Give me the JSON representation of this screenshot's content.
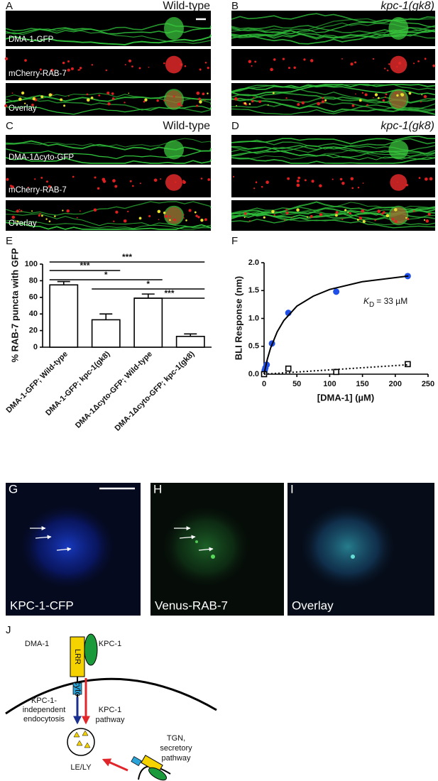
{
  "panels": [
    {
      "letter": "A",
      "title": "Wild-type",
      "channels": [
        "DMA-1-GFP",
        "mCherry-RAB-7",
        "Overlay"
      ]
    },
    {
      "letter": "B",
      "title": "kpc-1(gk8)"
    },
    {
      "letter": "C",
      "title": "Wild-type",
      "channels": [
        "DMA-1Δcyto-GFP",
        "mCherry-RAB-7",
        "Overlay"
      ]
    },
    {
      "letter": "D",
      "title": "kpc-1(gk8)"
    }
  ],
  "chart_data": [
    {
      "letter": "E",
      "type": "bar",
      "ylabel": "% RAB-7 puncta with GFP",
      "categories": [
        "DMA-1-GFP; Wild-type",
        "DMA-1-GFP; kpc-1(gk8)",
        "DMA-1Δcyto-GFP; Wild-type",
        "DMA-1Δcyto-GFP; kpc-1(gk8)"
      ],
      "values": [
        75,
        33,
        59,
        13
      ],
      "errors": [
        4,
        7,
        5,
        3
      ],
      "color": "#ffffff",
      "ylim": [
        0,
        100
      ],
      "yticks": [
        0,
        20,
        40,
        60,
        80,
        100
      ],
      "significance": [
        "***",
        "***",
        "*",
        "*",
        "***"
      ]
    },
    {
      "letter": "F",
      "type": "scatter",
      "xlabel": "[DMA-1] (µM)",
      "ylabel": "BLI Response (nm)",
      "series": [
        {
          "marker": "circle",
          "color": "#1f4fe6",
          "x": [
            0.5,
            1,
            2,
            4,
            12,
            37,
            110,
            219
          ],
          "values": [
            0.03,
            0.07,
            0.11,
            0.17,
            0.55,
            1.1,
            1.48,
            1.76
          ]
        },
        {
          "marker": "open-square",
          "color": "#000000",
          "x": [
            0,
            37,
            110,
            219
          ],
          "values": [
            0,
            0.1,
            0.04,
            0.18
          ]
        },
        {
          "style": "solid",
          "color": "#000000",
          "x": [
            0,
            5,
            10,
            20,
            30,
            50,
            75,
            100,
            150,
            220
          ],
          "values": [
            0,
            0.27,
            0.47,
            0.76,
            0.96,
            1.22,
            1.4,
            1.52,
            1.66,
            1.76
          ]
        },
        {
          "style": "dotted",
          "color": "#000000",
          "x": [
            0,
            220
          ],
          "values": [
            0,
            0.17
          ]
        }
      ],
      "kd_label": {
        "symbol": "K",
        "subscript": "D",
        "text": "= 33 µM"
      },
      "xlim": [
        0,
        250
      ],
      "xticks": [
        0,
        50,
        100,
        150,
        200,
        250
      ],
      "ylim": [
        0,
        2
      ],
      "yticks": [
        {
          "value": 0,
          "label": "0.0"
        },
        {
          "value": 0.5,
          "label": "0.5"
        },
        {
          "value": 1,
          "label": "1.0"
        },
        {
          "value": 1.5,
          "label": "1.5"
        },
        {
          "value": 2,
          "label": "2.0"
        }
      ]
    }
  ],
  "cell_images": [
    {
      "letter": "G",
      "label": "KPC-1-CFP"
    },
    {
      "letter": "H",
      "label": "Venus-RAB-7"
    },
    {
      "letter": "I",
      "label": "Overlay"
    }
  ],
  "model": {
    "letter": "J",
    "dma": "DMA-1",
    "kpc": "KPC-1",
    "lrr": "LRR",
    "cyto": "cyto",
    "independent": [
      "KPC-1-",
      "independent",
      "endocytosis"
    ],
    "pathway": [
      "KPC-1",
      "pathway"
    ],
    "secretory": [
      "TGN,",
      "secretory",
      "pathway"
    ],
    "compartment": "LE/LY"
  }
}
